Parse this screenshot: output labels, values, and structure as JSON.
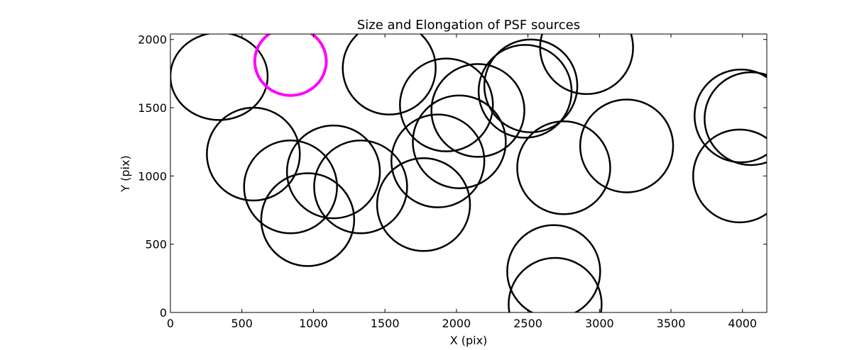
{
  "chart_data": {
    "type": "scatter",
    "title": "Size and Elongation of PSF sources",
    "xlabel": "X (pix)",
    "ylabel": "Y (pix)",
    "xlim": [
      0,
      4170
    ],
    "ylim": [
      0,
      2040
    ],
    "xticks": [
      0,
      500,
      1000,
      1500,
      2000,
      2500,
      3000,
      3500,
      4000
    ],
    "yticks": [
      0,
      500,
      1000,
      1500,
      2000
    ],
    "grid": false,
    "legend": "none",
    "marker": "ellipse outline",
    "colors": {
      "default": "#000000",
      "highlight": "#ff00ff"
    },
    "sources": [
      {
        "x": 340,
        "y": 1730,
        "w": 680,
        "h": 640,
        "highlight": false
      },
      {
        "x": 840,
        "y": 1840,
        "w": 500,
        "h": 500,
        "highlight": true
      },
      {
        "x": 1530,
        "y": 1790,
        "w": 650,
        "h": 680,
        "highlight": false
      },
      {
        "x": 1930,
        "y": 1520,
        "w": 650,
        "h": 680,
        "highlight": false
      },
      {
        "x": 2150,
        "y": 1480,
        "w": 650,
        "h": 680,
        "highlight": false
      },
      {
        "x": 2480,
        "y": 1620,
        "w": 650,
        "h": 680,
        "highlight": false
      },
      {
        "x": 2520,
        "y": 1660,
        "w": 650,
        "h": 680,
        "highlight": false
      },
      {
        "x": 2910,
        "y": 1940,
        "w": 650,
        "h": 680,
        "highlight": false
      },
      {
        "x": 3990,
        "y": 1440,
        "w": 650,
        "h": 680,
        "highlight": false
      },
      {
        "x": 4060,
        "y": 1420,
        "w": 650,
        "h": 680,
        "highlight": false
      },
      {
        "x": 3980,
        "y": 1000,
        "w": 650,
        "h": 680,
        "highlight": false
      },
      {
        "x": 3190,
        "y": 1220,
        "w": 650,
        "h": 680,
        "highlight": false
      },
      {
        "x": 2750,
        "y": 1060,
        "w": 650,
        "h": 680,
        "highlight": false
      },
      {
        "x": 2020,
        "y": 1250,
        "w": 650,
        "h": 680,
        "highlight": false
      },
      {
        "x": 1870,
        "y": 1110,
        "w": 650,
        "h": 680,
        "highlight": false
      },
      {
        "x": 1770,
        "y": 790,
        "w": 650,
        "h": 680,
        "highlight": false
      },
      {
        "x": 580,
        "y": 1160,
        "w": 650,
        "h": 680,
        "highlight": false
      },
      {
        "x": 840,
        "y": 920,
        "w": 650,
        "h": 680,
        "highlight": false
      },
      {
        "x": 960,
        "y": 680,
        "w": 650,
        "h": 680,
        "highlight": false
      },
      {
        "x": 1140,
        "y": 1030,
        "w": 650,
        "h": 680,
        "highlight": false
      },
      {
        "x": 1330,
        "y": 920,
        "w": 650,
        "h": 680,
        "highlight": false
      },
      {
        "x": 2680,
        "y": 300,
        "w": 650,
        "h": 680,
        "highlight": false
      },
      {
        "x": 2690,
        "y": 60,
        "w": 650,
        "h": 680,
        "highlight": false
      }
    ]
  }
}
